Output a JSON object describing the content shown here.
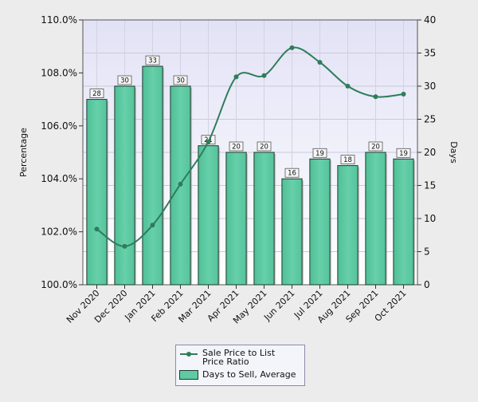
{
  "chart_data": {
    "type": "bar+line",
    "categories": [
      "Nov 2020",
      "Dec 2020",
      "Jan 2021",
      "Feb 2021",
      "Mar 2021",
      "Apr 2021",
      "May 2021",
      "Jun 2021",
      "Jul 2021",
      "Aug 2021",
      "Sep 2021",
      "Oct 2021"
    ],
    "series": [
      {
        "name": "Days to Sell, Average",
        "type": "bar",
        "axis": "right",
        "color": "#5fcaa4",
        "values": [
          28,
          30,
          33,
          30,
          21,
          20,
          20,
          16,
          19,
          18,
          20,
          19
        ]
      },
      {
        "name": "Sale Price to List Price Ratio",
        "type": "line",
        "axis": "left",
        "color": "#2e7d5a",
        "values": [
          102.1,
          101.45,
          102.25,
          103.8,
          105.4,
          107.85,
          107.9,
          108.95,
          108.4,
          107.5,
          107.1,
          107.2
        ]
      }
    ],
    "ylabel_left": "Percentage",
    "ylabel_right": "Days",
    "y_left_ticks": [
      "100.0%",
      "102.0%",
      "104.0%",
      "106.0%",
      "108.0%",
      "110.0%"
    ],
    "y_left_range": [
      100,
      110
    ],
    "y_right_ticks": [
      "0",
      "5",
      "10",
      "15",
      "20",
      "25",
      "30",
      "35",
      "40"
    ],
    "y_right_range": [
      0,
      40
    ],
    "grid": true,
    "legend_position": "bottom"
  }
}
